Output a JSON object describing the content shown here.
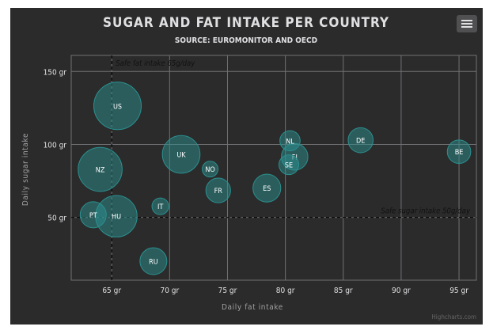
{
  "chart_data": {
    "type": "scatter",
    "title": "SUGAR AND FAT INTAKE PER COUNTRY",
    "subtitle": "SOURCE: EUROMONITOR AND OECD",
    "xlabel": "Daily fat intake",
    "ylabel": "Daily sugar intake",
    "xlim": [
      61.5,
      96.5
    ],
    "ylim": [
      7,
      161
    ],
    "x_ticks": [
      "65 gr",
      "70 gr",
      "75 gr",
      "80 gr",
      "85 gr",
      "90 gr",
      "95 gr"
    ],
    "y_ticks": [
      "50 gr",
      "100 gr",
      "150 gr"
    ],
    "x_tick_values": [
      65,
      70,
      75,
      80,
      85,
      90,
      95
    ],
    "y_tick_values": [
      50,
      100,
      150
    ],
    "grid": true,
    "plot_lines": [
      {
        "axis": "x",
        "value": 65,
        "label": "Safe fat intake 65g/day"
      },
      {
        "axis": "y",
        "value": 50,
        "label": "Safe sugar intake 50g/day"
      }
    ],
    "points": [
      {
        "label": "BE",
        "x": 95.0,
        "y": 95.0,
        "z": 13.8
      },
      {
        "label": "DE",
        "x": 86.5,
        "y": 102.9,
        "z": 14.7
      },
      {
        "label": "FI",
        "x": 80.8,
        "y": 91.5,
        "z": 15.8
      },
      {
        "label": "NL",
        "x": 80.4,
        "y": 102.5,
        "z": 12.0
      },
      {
        "label": "SE",
        "x": 80.3,
        "y": 86.1,
        "z": 11.8
      },
      {
        "label": "ES",
        "x": 78.4,
        "y": 70.1,
        "z": 16.6
      },
      {
        "label": "FR",
        "x": 74.2,
        "y": 68.5,
        "z": 14.5
      },
      {
        "label": "NO",
        "x": 73.5,
        "y": 83.1,
        "z": 10.0
      },
      {
        "label": "UK",
        "x": 71.0,
        "y": 93.2,
        "z": 24.7
      },
      {
        "label": "IT",
        "x": 69.2,
        "y": 57.6,
        "z": 10.4
      },
      {
        "label": "RU",
        "x": 68.6,
        "y": 20.0,
        "z": 16.0
      },
      {
        "label": "US",
        "x": 65.5,
        "y": 126.4,
        "z": 35.3
      },
      {
        "label": "HU",
        "x": 65.4,
        "y": 50.8,
        "z": 28.5
      },
      {
        "label": "PT",
        "x": 63.4,
        "y": 51.8,
        "z": 15.4
      },
      {
        "label": "NZ",
        "x": 64.0,
        "y": 82.9,
        "z": 31.3
      }
    ],
    "credits": "Highcharts.com"
  },
  "colors": {
    "background": "#2b2b2b",
    "bubble_fill": "#2b908f",
    "grid": "#707073",
    "text": "#e0e0e3",
    "axis_title": "#a0a0a3"
  },
  "menu_icon": "hamburger-menu-icon"
}
